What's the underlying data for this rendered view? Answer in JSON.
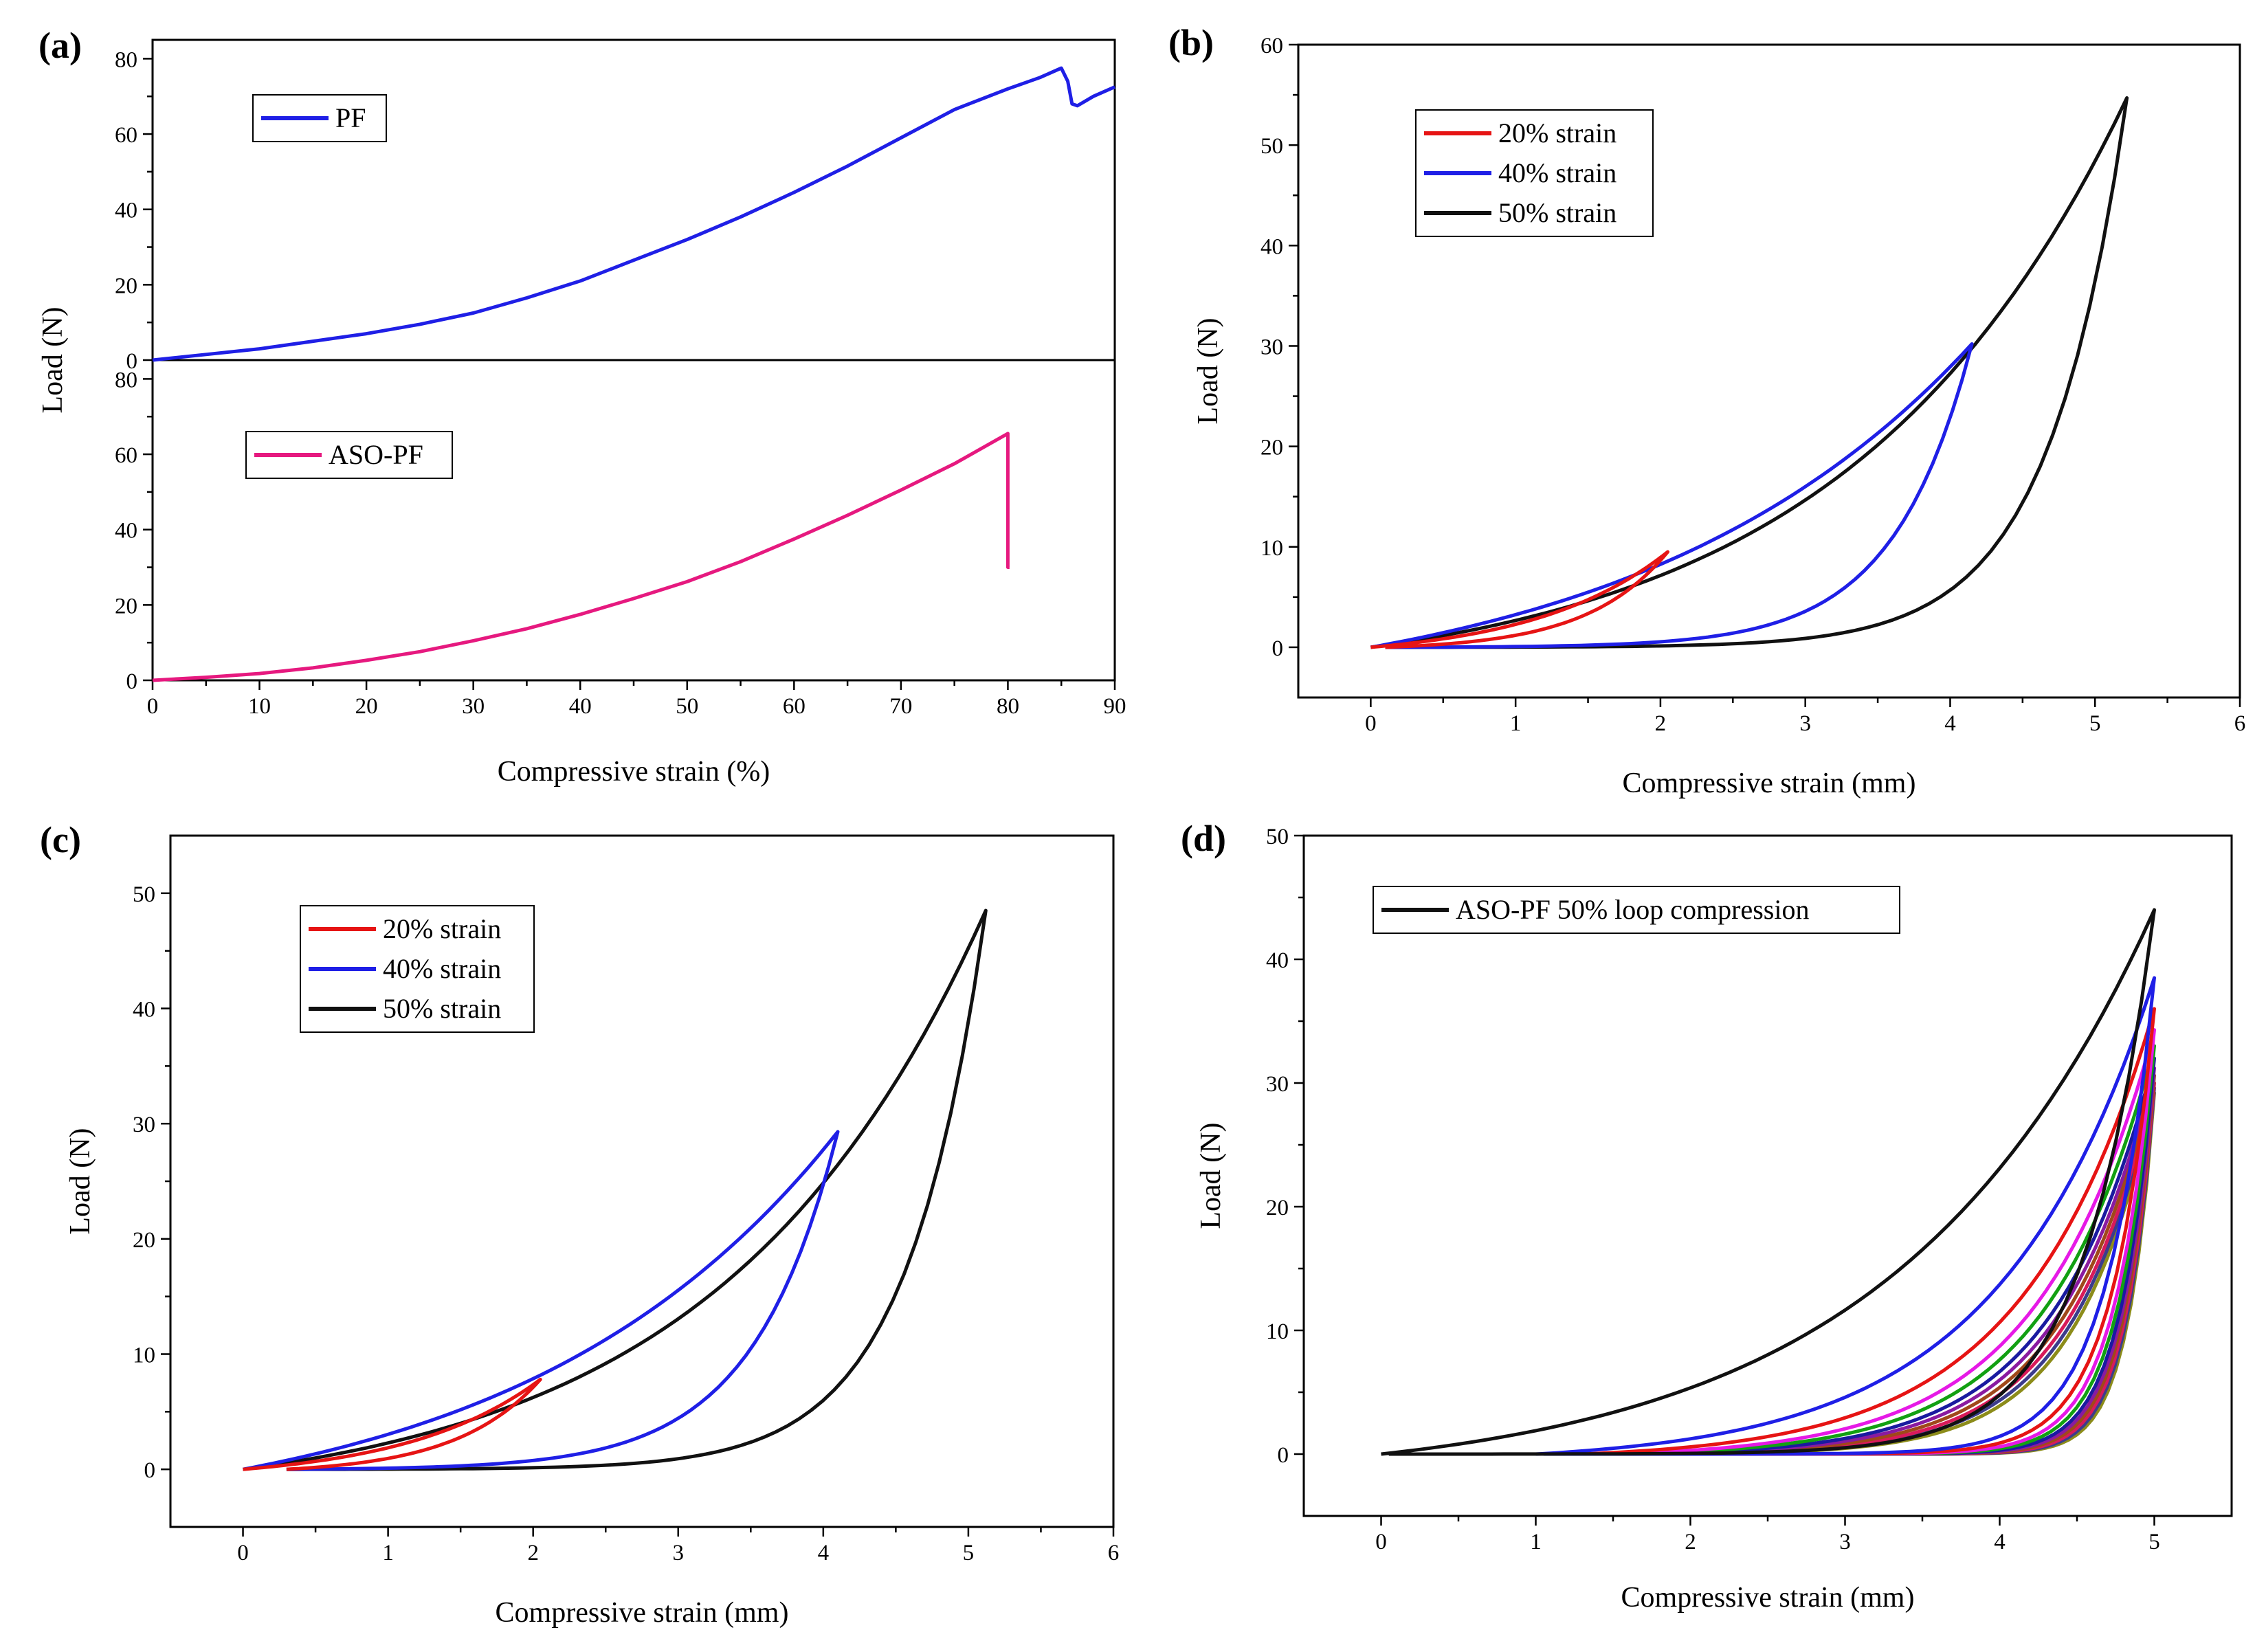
{
  "figure": {
    "panels": [
      {
        "id": "a",
        "label": "(a)"
      },
      {
        "id": "b",
        "label": "(b)"
      },
      {
        "id": "c",
        "label": "(c)"
      },
      {
        "id": "d",
        "label": "(d)"
      }
    ]
  },
  "chart_data": [
    {
      "panel": "(a)",
      "type": "line",
      "title": "",
      "xlabel": "Compressive strain (%)",
      "ylabel": "Load (N)",
      "xlim": [
        0,
        90
      ],
      "xticks": [
        0,
        10,
        20,
        30,
        40,
        50,
        60,
        70,
        80,
        90
      ],
      "subplots": [
        {
          "ylim": [
            0,
            85
          ],
          "yticks": [
            0,
            20,
            40,
            60,
            80
          ],
          "legend": "top-left",
          "series": [
            {
              "name": "PF",
              "color": "#1f1fe6",
              "x": [
                0,
                5,
                10,
                15,
                20,
                25,
                30,
                35,
                40,
                45,
                50,
                55,
                60,
                65,
                70,
                75,
                80,
                83,
                85,
                85.6,
                86,
                86.5,
                88,
                90
              ],
              "y": [
                0,
                1.5,
                3,
                5,
                7,
                9.5,
                12.5,
                16.5,
                21,
                26.5,
                32,
                38,
                44.5,
                51.5,
                59,
                66.5,
                72,
                75,
                77.5,
                74,
                68,
                67.5,
                70,
                72.5
              ]
            }
          ]
        },
        {
          "ylim": [
            0,
            85
          ],
          "yticks": [
            0,
            20,
            40,
            60,
            80
          ],
          "legend": "top-left",
          "series": [
            {
              "name": "ASO-PF",
              "color": "#e6197f",
              "x": [
                0,
                5,
                10,
                15,
                20,
                25,
                30,
                35,
                40,
                45,
                50,
                55,
                60,
                65,
                70,
                75,
                80,
                80,
                80.15
              ],
              "y": [
                0,
                0.8,
                1.8,
                3.3,
                5.3,
                7.6,
                10.5,
                13.7,
                17.5,
                21.7,
                26.2,
                31.5,
                37.5,
                43.8,
                50.5,
                57.5,
                65.5,
                30,
                30
              ]
            }
          ]
        }
      ]
    },
    {
      "panel": "(b)",
      "type": "line",
      "title": "",
      "xlabel": "Compressive strain (mm)",
      "ylabel": "Load (N)",
      "xlim": [
        -0.5,
        6
      ],
      "ylim": [
        -5,
        60
      ],
      "xticks": [
        0,
        1,
        2,
        3,
        4,
        5,
        6
      ],
      "yticks": [
        0,
        10,
        20,
        30,
        40,
        50,
        60
      ],
      "legend": "top-left",
      "series": [
        {
          "name": "20% strain",
          "color": "#e61414",
          "loading_k": 2.2,
          "unloading_k": 3.5,
          "peak_x": 2.05,
          "peak_y": 9.5,
          "unload_end_x": 0.1
        },
        {
          "name": "40% strain",
          "color": "#1f1fe6",
          "loading_k": 1.8,
          "unloading_k": 7.5,
          "peak_x": 4.15,
          "peak_y": 30.2,
          "unload_end_x": 0.1
        },
        {
          "name": "50% strain",
          "color": "#111111",
          "loading_k": 2.7,
          "unloading_k": 9.5,
          "peak_x": 5.22,
          "peak_y": 54.7,
          "unload_end_x": 0.1
        }
      ]
    },
    {
      "panel": "(c)",
      "type": "line",
      "title": "",
      "xlabel": "Compressive strain (mm)",
      "ylabel": "Load (N)",
      "xlim": [
        -0.5,
        6
      ],
      "ylim": [
        -5,
        55
      ],
      "xticks": [
        0,
        1,
        2,
        3,
        4,
        5,
        6
      ],
      "yticks": [
        0,
        10,
        20,
        30,
        40,
        50
      ],
      "legend": "top-left",
      "series": [
        {
          "name": "20% strain",
          "color": "#e61414",
          "loading_k": 2.2,
          "unloading_k": 3.0,
          "peak_x": 2.05,
          "peak_y": 7.8,
          "unload_end_x": 0.3
        },
        {
          "name": "40% strain",
          "color": "#1f1fe6",
          "loading_k": 1.9,
          "unloading_k": 6.5,
          "peak_x": 4.1,
          "peak_y": 29.3,
          "unload_end_x": 0.3
        },
        {
          "name": "50% strain",
          "color": "#111111",
          "loading_k": 2.8,
          "unloading_k": 9.0,
          "peak_x": 5.12,
          "peak_y": 48.5,
          "unload_end_x": 0.3
        }
      ]
    },
    {
      "panel": "(d)",
      "type": "line",
      "title": "",
      "xlabel": "Compressive strain (mm)",
      "ylabel": "Load (N)",
      "xlim": [
        -0.5,
        5.5
      ],
      "ylim": [
        -5,
        50
      ],
      "xticks": [
        0,
        1,
        2,
        3,
        4,
        5
      ],
      "yticks": [
        0,
        10,
        20,
        30,
        40,
        50
      ],
      "legend": "top-left",
      "series": [
        {
          "name": "ASO-PF 50% loop compression",
          "color": "#111111",
          "peak_y": 44.0,
          "start_x": 0.0,
          "loading_k": 3.0,
          "unloading_k": 11
        },
        {
          "name": "",
          "color": "#1f1fe6",
          "peak_y": 38.5,
          "start_x": 1.0,
          "loading_k": 4.0,
          "unloading_k": 13
        },
        {
          "name": "",
          "color": "#e61414",
          "peak_y": 36.0,
          "start_x": 1.3,
          "loading_k": 4.4,
          "unloading_k": 13.5
        },
        {
          "name": "",
          "color": "#e619e6",
          "peak_y": 34.3,
          "start_x": 1.5,
          "loading_k": 4.7,
          "unloading_k": 14
        },
        {
          "name": "",
          "color": "#12a012",
          "peak_y": 33.0,
          "start_x": 1.6,
          "loading_k": 4.9,
          "unloading_k": 14.5
        },
        {
          "name": "",
          "color": "#1a1aa0",
          "peak_y": 32.0,
          "start_x": 1.7,
          "loading_k": 5.1,
          "unloading_k": 15
        },
        {
          "name": "",
          "color": "#8a1aa0",
          "peak_y": 31.2,
          "start_x": 1.75,
          "loading_k": 5.3,
          "unloading_k": 15.5
        },
        {
          "name": "",
          "color": "#a0481a",
          "peak_y": 30.6,
          "start_x": 1.8,
          "loading_k": 5.5,
          "unloading_k": 16
        },
        {
          "name": "",
          "color": "#d81a5a",
          "peak_y": 30.0,
          "start_x": 1.85,
          "loading_k": 5.7,
          "unloading_k": 16.5
        },
        {
          "name": "",
          "color": "#3c3c8c",
          "peak_y": 29.6,
          "start_x": 1.9,
          "loading_k": 5.9,
          "unloading_k": 17
        },
        {
          "name": "",
          "color": "#8c8c1a",
          "peak_y": 29.2,
          "start_x": 1.95,
          "loading_k": 6.1,
          "unloading_k": 17.5
        }
      ],
      "peak_x": 5.0
    }
  ]
}
